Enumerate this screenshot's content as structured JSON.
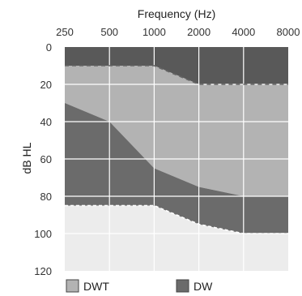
{
  "chart_data": {
    "type": "area",
    "title": "Frequency (Hz)",
    "xlabel": "Frequency (Hz)",
    "ylabel": "dB HL",
    "x_scale": "log2",
    "y_inverted": true,
    "ylim": [
      0,
      120
    ],
    "x_ticks": [
      250,
      500,
      1000,
      2000,
      4000,
      8000
    ],
    "x_tick_labels": [
      "250",
      "500",
      "1000",
      "2000",
      "4000",
      "8000"
    ],
    "y_ticks": [
      0,
      20,
      40,
      60,
      80,
      100,
      120
    ],
    "y_tick_labels": [
      "0",
      "20",
      "40",
      "60",
      "80",
      "100",
      "120"
    ],
    "grid": true,
    "legend_position": "bottom",
    "series": [
      {
        "name": "DWT",
        "color": "#b3b3b3",
        "upper_boundary": {
          "x": [
            250,
            500,
            1000,
            2000,
            4000,
            8000
          ],
          "y": [
            10,
            10,
            10,
            20,
            20,
            20
          ]
        },
        "lower_boundary": {
          "x": [
            250,
            500,
            1000,
            2000,
            4000,
            8000
          ],
          "y": [
            30,
            40,
            65,
            75,
            80,
            80
          ]
        }
      },
      {
        "name": "DW",
        "color": "#6b6b6b",
        "upper_boundary": {
          "x": [
            250,
            500,
            1000,
            2000,
            4000,
            8000
          ],
          "y": [
            30,
            40,
            65,
            75,
            80,
            80
          ]
        },
        "lower_boundary": {
          "x": [
            250,
            500,
            1000,
            2000,
            4000,
            8000
          ],
          "y": [
            85,
            85,
            85,
            95,
            100,
            100
          ]
        }
      }
    ],
    "colors": {
      "top_band": "#595959",
      "dwt": "#b3b3b3",
      "dw": "#6b6b6b",
      "bottom_band": "#ececec",
      "grid": "#ffffff",
      "dashed_line": "#666666"
    }
  }
}
